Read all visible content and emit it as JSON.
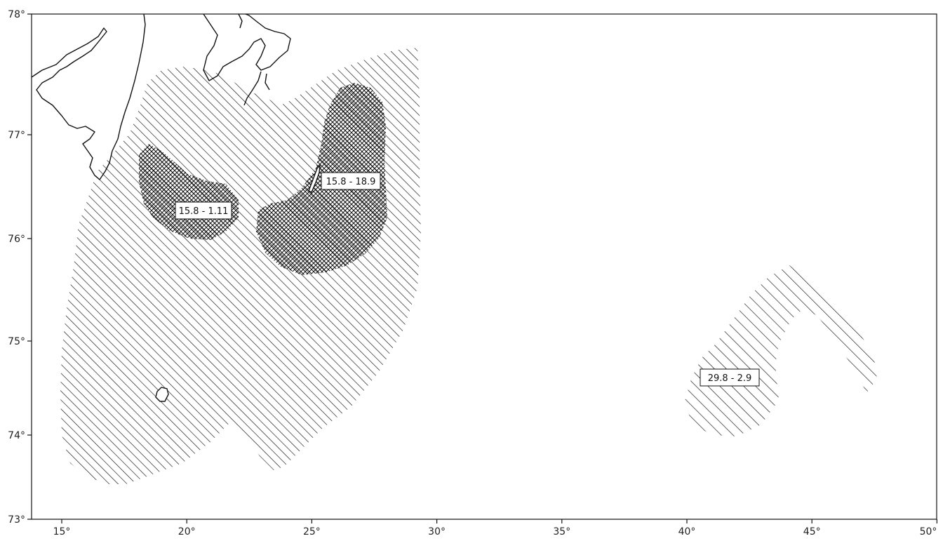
{
  "map": {
    "x_ticks": [
      "15°",
      "20°",
      "25°",
      "30°",
      "35°",
      "40°",
      "45°",
      "50°"
    ],
    "y_ticks": [
      "78°",
      "77°",
      "76°",
      "75°",
      "74°",
      "73°"
    ],
    "labels": [
      {
        "id": "label-1",
        "text": "15.8 - 1.11"
      },
      {
        "id": "label-2",
        "text": "15.8 - 18.9"
      },
      {
        "id": "label-3",
        "text": "29.8 - 2.9"
      }
    ],
    "ink_color": "#111111"
  }
}
